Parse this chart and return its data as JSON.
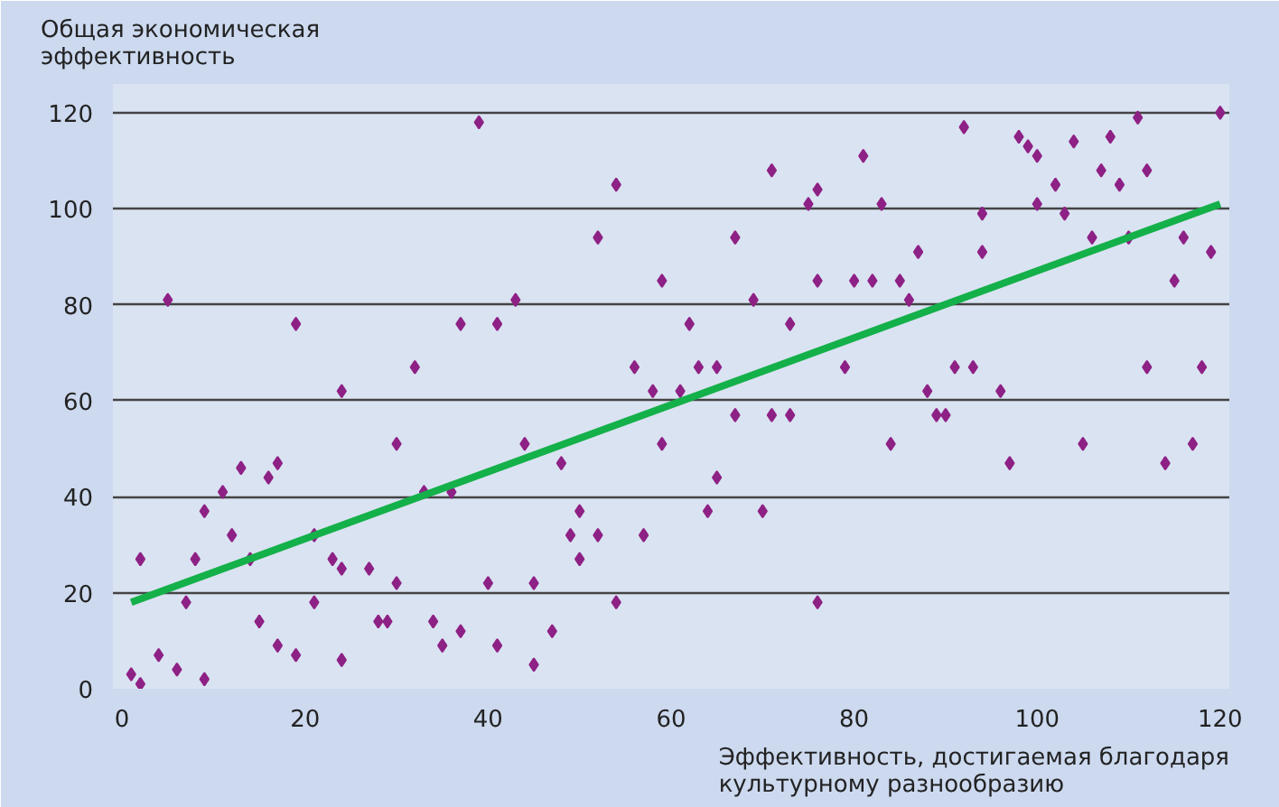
{
  "chart_data": {
    "type": "scatter",
    "xlabel": "Эффективность, достигаемая благодаря культурному разнообразию",
    "ylabel": "Общая экономическая эффективность",
    "xlim": [
      -1,
      121
    ],
    "ylim": [
      0,
      126
    ],
    "xticks": [
      0,
      20,
      40,
      60,
      80,
      100,
      120
    ],
    "yticks": [
      0,
      20,
      40,
      60,
      80,
      100,
      120
    ],
    "grid": "y",
    "series": [
      {
        "color": "#8e2185",
        "marker": "diamond",
        "x": [
          1,
          2,
          2,
          4,
          5,
          6,
          7,
          8,
          9,
          9,
          11,
          12,
          13,
          14,
          15,
          16,
          17,
          17,
          19,
          19,
          21,
          21,
          23,
          24,
          24,
          24,
          27,
          28,
          29,
          30,
          30,
          32,
          33,
          34,
          35,
          36,
          37,
          37,
          39,
          40,
          41,
          41,
          43,
          44,
          45,
          45,
          47,
          48,
          49,
          50,
          50,
          52,
          52,
          54,
          54,
          56,
          57,
          58,
          59,
          59,
          61,
          62,
          63,
          64,
          65,
          65,
          67,
          67,
          69,
          70,
          71,
          71,
          73,
          73,
          75,
          76,
          76,
          76,
          79,
          80,
          81,
          82,
          83,
          84,
          85,
          86,
          87,
          88,
          89,
          90,
          91,
          92,
          93,
          94,
          94,
          96,
          97,
          98,
          99,
          100,
          100,
          102,
          103,
          104,
          105,
          106,
          107,
          108,
          109,
          110,
          111,
          112,
          112,
          114,
          115,
          116,
          117,
          118,
          119,
          120
        ],
        "values": [
          3,
          1,
          27,
          7,
          81,
          4,
          18,
          27,
          2,
          37,
          41,
          32,
          46,
          27,
          14,
          44,
          47,
          9,
          76,
          7,
          32,
          18,
          27,
          25,
          62,
          6,
          25,
          14,
          14,
          51,
          22,
          67,
          41,
          14,
          9,
          41,
          76,
          12,
          118,
          22,
          76,
          9,
          81,
          51,
          22,
          5,
          12,
          47,
          32,
          37,
          27,
          32,
          94,
          105,
          18,
          67,
          32,
          62,
          85,
          51,
          62,
          76,
          67,
          37,
          67,
          44,
          94,
          57,
          81,
          37,
          108,
          57,
          76,
          57,
          101,
          104,
          85,
          18,
          67,
          85,
          111,
          85,
          101,
          51,
          85,
          81,
          91,
          62,
          57,
          57,
          67,
          117,
          67,
          99,
          91,
          62,
          47,
          115,
          113,
          111,
          101,
          105,
          99,
          114,
          51,
          94,
          108,
          115,
          105,
          94,
          119,
          108,
          67,
          47,
          85,
          94,
          51,
          67,
          91,
          120
        ]
      },
      {
        "type": "line",
        "color": "#14b04a",
        "x": [
          1,
          120
        ],
        "values": [
          18,
          101
        ]
      }
    ]
  }
}
